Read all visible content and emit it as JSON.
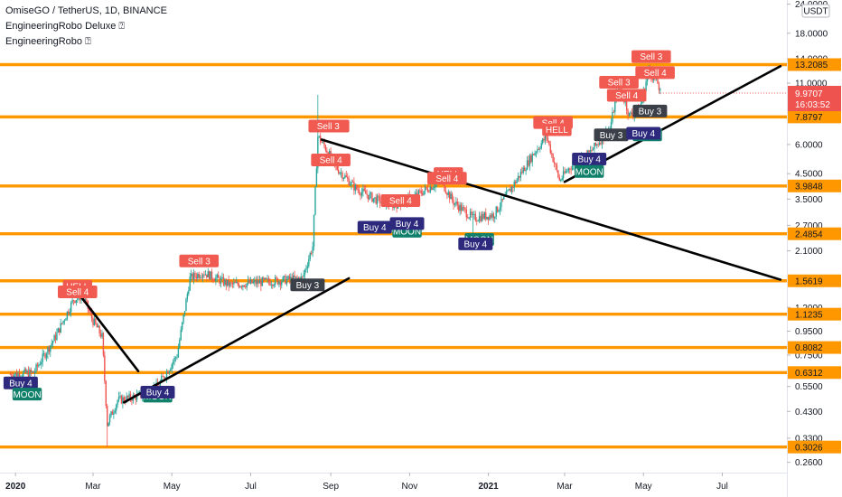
{
  "header": {
    "symbol_line": "OmiseGO / TetherUS, 1D, BINANCE",
    "indicator_1": "EngineeringRobo Deluxe ⍰",
    "indicator_2": "EngineeringRobo ⍰"
  },
  "colors": {
    "background": "#ffffff",
    "level_line": "#ff9800",
    "up_candle": "#26a69a",
    "down_candle": "#ef5350",
    "sell_label": "#f05a50",
    "buy_label": "#2d2a7e",
    "buy3_label": "#3a3f48",
    "moon_label": "#11806a",
    "trendline": "#000000",
    "price_line": "#ef5350"
  },
  "chart_data": {
    "type": "candlestick",
    "symbol": "OmiseGO / TetherUS",
    "interval": "1D",
    "exchange": "BINANCE",
    "y_scale": "log",
    "y_unit": "USDT",
    "x_range": [
      "2019-12-20",
      "2021-08-20"
    ],
    "y_range": [
      0.235,
      25.0
    ],
    "x_tick_labels": [
      {
        "label": "2020",
        "date": "2020-01-01"
      },
      {
        "label": "Mar",
        "date": "2020-03-01"
      },
      {
        "label": "May",
        "date": "2020-05-01"
      },
      {
        "label": "Jul",
        "date": "2020-07-01"
      },
      {
        "label": "Sep",
        "date": "2020-09-01"
      },
      {
        "label": "Nov",
        "date": "2020-11-01"
      },
      {
        "label": "2021",
        "date": "2021-01-01"
      },
      {
        "label": "Mar",
        "date": "2021-03-01"
      },
      {
        "label": "May",
        "date": "2021-05-01"
      },
      {
        "label": "Jul",
        "date": "2021-07-01"
      }
    ],
    "y_tick_labels": [
      {
        "label": "24.0000",
        "value": 24.0
      },
      {
        "label": "18.0000",
        "value": 18.0
      },
      {
        "label": "14.0000",
        "value": 14.0
      },
      {
        "label": "11.0000",
        "value": 11.0
      },
      {
        "label": "6.0000",
        "value": 6.0
      },
      {
        "label": "4.5000",
        "value": 4.5
      },
      {
        "label": "3.5000",
        "value": 3.5
      },
      {
        "label": "2.7000",
        "value": 2.7
      },
      {
        "label": "2.1000",
        "value": 2.1
      },
      {
        "label": "1.2000",
        "value": 1.2
      },
      {
        "label": "0.9500",
        "value": 0.95
      },
      {
        "label": "0.7500",
        "value": 0.75
      },
      {
        "label": "0.5500",
        "value": 0.55
      },
      {
        "label": "0.4300",
        "value": 0.43
      },
      {
        "label": "0.3300",
        "value": 0.33
      },
      {
        "label": "0.2600",
        "value": 0.26
      }
    ],
    "levels": [
      {
        "label": "13.2085",
        "value": 13.2085
      },
      {
        "label": "7.8797",
        "value": 7.8797
      },
      {
        "label": "3.9848",
        "value": 3.9848
      },
      {
        "label": "2.4854",
        "value": 2.4854
      },
      {
        "label": "1.5619",
        "value": 1.5619
      },
      {
        "label": "1.1235",
        "value": 1.1235
      },
      {
        "label": "0.8082",
        "value": 0.8082
      },
      {
        "label": "0.6312",
        "value": 0.6312
      },
      {
        "label": "0.3026",
        "value": 0.3026
      }
    ],
    "last_price": {
      "label": "9.9707",
      "value": 9.9707,
      "countdown": "16:03:52"
    },
    "price_path": [
      [
        "2019-12-28",
        0.62
      ],
      [
        "2020-01-15",
        0.63
      ],
      [
        "2020-02-01",
        0.9
      ],
      [
        "2020-02-15",
        1.3
      ],
      [
        "2020-02-22",
        1.35
      ],
      [
        "2020-03-01",
        1.05
      ],
      [
        "2020-03-08",
        0.9
      ],
      [
        "2020-03-12",
        0.38
      ],
      [
        "2020-03-20",
        0.48
      ],
      [
        "2020-04-05",
        0.5
      ],
      [
        "2020-04-20",
        0.55
      ],
      [
        "2020-05-05",
        0.75
      ],
      [
        "2020-05-15",
        1.6
      ],
      [
        "2020-05-25",
        1.7
      ],
      [
        "2020-06-15",
        1.5
      ],
      [
        "2020-07-15",
        1.55
      ],
      [
        "2020-08-10",
        1.6
      ],
      [
        "2020-08-18",
        2.2
      ],
      [
        "2020-08-22",
        6.5
      ],
      [
        "2020-08-28",
        5.8
      ],
      [
        "2020-09-05",
        4.8
      ],
      [
        "2020-09-20",
        3.9
      ],
      [
        "2020-10-05",
        3.5
      ],
      [
        "2020-10-20",
        3.3
      ],
      [
        "2020-11-05",
        3.6
      ],
      [
        "2020-11-25",
        4.2
      ],
      [
        "2020-12-05",
        3.4
      ],
      [
        "2020-12-20",
        2.9
      ],
      [
        "2021-01-05",
        3.0
      ],
      [
        "2021-01-20",
        4.0
      ],
      [
        "2021-02-05",
        5.5
      ],
      [
        "2021-02-15",
        6.5
      ],
      [
        "2021-02-25",
        4.2
      ],
      [
        "2021-03-05",
        4.8
      ],
      [
        "2021-03-20",
        5.5
      ],
      [
        "2021-04-05",
        7.0
      ],
      [
        "2021-04-12",
        11.0
      ],
      [
        "2021-04-20",
        8.0
      ],
      [
        "2021-04-28",
        8.5
      ],
      [
        "2021-05-05",
        12.5
      ],
      [
        "2021-05-12",
        11.0
      ],
      [
        "2021-05-14",
        9.97
      ]
    ],
    "spikes": [
      {
        "date": "2020-03-12",
        "low": 0.3026
      },
      {
        "date": "2020-08-22",
        "high": 9.8
      },
      {
        "date": "2020-12-20",
        "low": 2.2
      }
    ],
    "trendlines": [
      {
        "from": [
          "2020-02-20",
          1.35
        ],
        "to": [
          "2020-04-05",
          0.64
        ]
      },
      {
        "from": [
          "2020-03-25",
          0.47
        ],
        "to": [
          "2020-09-15",
          1.6
        ]
      },
      {
        "from": [
          "2020-08-25",
          6.3
        ],
        "to": [
          "2021-08-15",
          1.58
        ]
      },
      {
        "from": [
          "2021-03-01",
          4.15
        ],
        "to": [
          "2021-08-15",
          13.0
        ]
      }
    ],
    "signals": [
      {
        "text": "Buy 4",
        "kind": "buy",
        "date": "2020-01-05",
        "value": 0.57
      },
      {
        "text": "MOON",
        "kind": "moon",
        "date": "2020-01-10",
        "value": 0.51
      },
      {
        "text": "HELL",
        "kind": "sell",
        "date": "2020-02-18",
        "value": 1.48
      },
      {
        "text": "Sell 4",
        "kind": "sell",
        "date": "2020-02-18",
        "value": 1.4
      },
      {
        "text": "MOON",
        "kind": "moon",
        "date": "2020-04-20",
        "value": 0.5
      },
      {
        "text": "Buy 4",
        "kind": "buy",
        "date": "2020-04-20",
        "value": 0.52
      },
      {
        "text": "Sell 3",
        "kind": "sell",
        "date": "2020-05-22",
        "value": 1.9
      },
      {
        "text": "Buy 3",
        "kind": "buy3",
        "date": "2020-08-14",
        "value": 1.5
      },
      {
        "text": "HELL",
        "kind": "sell",
        "date": "2020-09-04",
        "value": 7.2
      },
      {
        "text": "Sell 3",
        "kind": "sell",
        "date": "2020-08-30",
        "value": 7.2
      },
      {
        "text": "Sell 4",
        "kind": "sell",
        "date": "2020-09-01",
        "value": 5.15
      },
      {
        "text": "Buy 4",
        "kind": "buy",
        "date": "2020-10-05",
        "value": 2.65
      },
      {
        "text": "Sell 4",
        "kind": "sell",
        "date": "2020-10-25",
        "value": 3.45
      },
      {
        "text": "MOON",
        "kind": "moon",
        "date": "2020-10-30",
        "value": 2.55
      },
      {
        "text": "Buy 4",
        "kind": "buy",
        "date": "2020-10-30",
        "value": 2.75
      },
      {
        "text": "HELL",
        "kind": "sell",
        "date": "2020-12-01",
        "value": 4.5
      },
      {
        "text": "Sell 4",
        "kind": "sell",
        "date": "2020-11-30",
        "value": 4.3
      },
      {
        "text": "MOON",
        "kind": "moon",
        "date": "2020-12-25",
        "value": 2.35
      },
      {
        "text": "Buy 4",
        "kind": "buy",
        "date": "2020-12-22",
        "value": 2.25
      },
      {
        "text": "Sell 4",
        "kind": "sell",
        "date": "2021-02-20",
        "value": 7.45
      },
      {
        "text": "HELL",
        "kind": "sell",
        "date": "2021-02-23",
        "value": 6.95
      },
      {
        "text": "Buy 4",
        "kind": "buy",
        "date": "2021-03-20",
        "value": 5.2
      },
      {
        "text": "MOON",
        "kind": "moon",
        "date": "2021-03-20",
        "value": 4.6
      },
      {
        "text": "Buy 3",
        "kind": "buy3",
        "date": "2021-04-06",
        "value": 6.6
      },
      {
        "text": "Sell 3",
        "kind": "sell",
        "date": "2021-04-12",
        "value": 11.1
      },
      {
        "text": "Sell 4",
        "kind": "sell",
        "date": "2021-04-18",
        "value": 9.75
      },
      {
        "text": "Buy 3",
        "kind": "buy3",
        "date": "2021-05-06",
        "value": 8.35
      },
      {
        "text": "MOON",
        "kind": "moon",
        "date": "2021-05-04",
        "value": 6.6
      },
      {
        "text": "Buy 4",
        "kind": "buy",
        "date": "2021-05-01",
        "value": 6.7
      },
      {
        "text": "Sell 3",
        "kind": "sell",
        "date": "2021-05-07",
        "value": 14.3
      },
      {
        "text": "Sell 4",
        "kind": "sell",
        "date": "2021-05-10",
        "value": 12.2
      }
    ]
  }
}
